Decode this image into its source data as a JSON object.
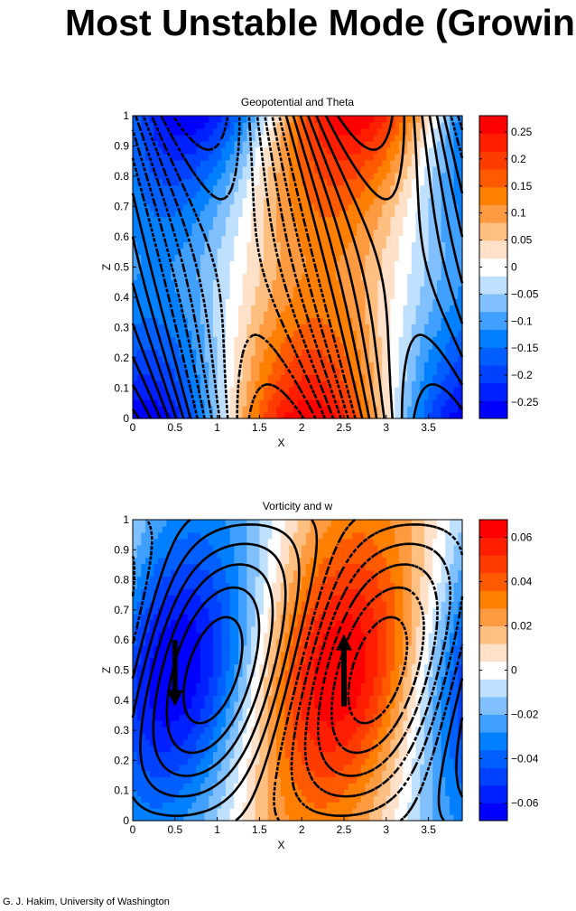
{
  "title": "Most Unstable Mode (Growing",
  "footer": "G. J. Hakim, University of Washington",
  "colors": [
    "#0000ff",
    "#0020ff",
    "#0040ff",
    "#0060ff",
    "#0080ff",
    "#40a0ff",
    "#80c0ff",
    "#c0e0ff",
    "#ffffff",
    "#ffe0c8",
    "#ffbf80",
    "#ff9a40",
    "#ff7f00",
    "#ff5a00",
    "#ff3c00",
    "#ff1e00",
    "#ff0000"
  ],
  "chart_data": [
    {
      "type": "heatmap",
      "title": "Geopotential and Theta",
      "xlabel": "X",
      "ylabel": "Z",
      "xlim": [
        0,
        3.9
      ],
      "ylim": [
        0,
        1
      ],
      "xticks": [
        "0",
        "0.5",
        "1",
        "1.5",
        "2",
        "2.5",
        "3",
        "3.5"
      ],
      "xtick_values": [
        0,
        0.5,
        1,
        1.5,
        2,
        2.5,
        3,
        3.5
      ],
      "yticks": [
        "0",
        "0.1",
        "0.2",
        "0.3",
        "0.4",
        "0.5",
        "0.6",
        "0.7",
        "0.8",
        "0.9",
        "1"
      ],
      "ytick_values": [
        0,
        0.1,
        0.2,
        0.3,
        0.4,
        0.5,
        0.6,
        0.7,
        0.8,
        0.9,
        1
      ],
      "shading": {
        "name": "Theta",
        "clim": [
          -0.28,
          0.28
        ],
        "max_at_bottom_x": 2.1,
        "max_at_top_x": 2.6,
        "amplitude_edges": 0.28,
        "amplitude_mid": 0.12
      },
      "contours": {
        "name": "Geopotential",
        "negative_dashed": true,
        "min_at_bottom_x": 1.7,
        "min_at_top_x": 0.8
      },
      "colorbar": {
        "ticks": [
          "0.25",
          "0.2",
          "0.15",
          "0.1",
          "0.05",
          "0",
          "−0.05",
          "−0.1",
          "−0.15",
          "−0.2",
          "−0.25"
        ],
        "tick_values": [
          0.25,
          0.2,
          0.15,
          0.1,
          0.05,
          0,
          -0.05,
          -0.1,
          -0.15,
          -0.2,
          -0.25
        ]
      }
    },
    {
      "type": "heatmap",
      "title": "Vorticity and w",
      "xlabel": "X",
      "ylabel": "Z",
      "xlim": [
        0,
        3.9
      ],
      "ylim": [
        0,
        1
      ],
      "xticks": [
        "0",
        "0.5",
        "1",
        "1.5",
        "2",
        "2.5",
        "3",
        "3.5"
      ],
      "xtick_values": [
        0,
        0.5,
        1,
        1.5,
        2,
        2.5,
        3,
        3.5
      ],
      "yticks": [
        "0",
        "0.1",
        "0.2",
        "0.3",
        "0.4",
        "0.5",
        "0.6",
        "0.7",
        "0.8",
        "0.9",
        "1"
      ],
      "ytick_values": [
        0,
        0.1,
        0.2,
        0.3,
        0.4,
        0.5,
        0.6,
        0.7,
        0.8,
        0.9,
        1
      ],
      "shading": {
        "name": "Vorticity",
        "clim": [
          -0.068,
          0.068
        ],
        "max_center": [
          2.45,
          0.45
        ],
        "min_center": [
          0.5,
          0.55
        ]
      },
      "contours": {
        "name": "w",
        "negative_dashed": true,
        "min_x": 2.9,
        "max_x": 0.95
      },
      "arrows": [
        {
          "label": "downward",
          "x": 0.5,
          "from_z": 0.6,
          "to_z": 0.38
        },
        {
          "label": "upward",
          "x": 2.5,
          "from_z": 0.38,
          "to_z": 0.62
        }
      ],
      "colorbar": {
        "ticks": [
          "0.06",
          "0.04",
          "0.02",
          "0",
          "−0.02",
          "−0.04",
          "−0.06"
        ],
        "tick_values": [
          0.06,
          0.04,
          0.02,
          0,
          -0.02,
          -0.04,
          -0.06
        ]
      }
    }
  ]
}
